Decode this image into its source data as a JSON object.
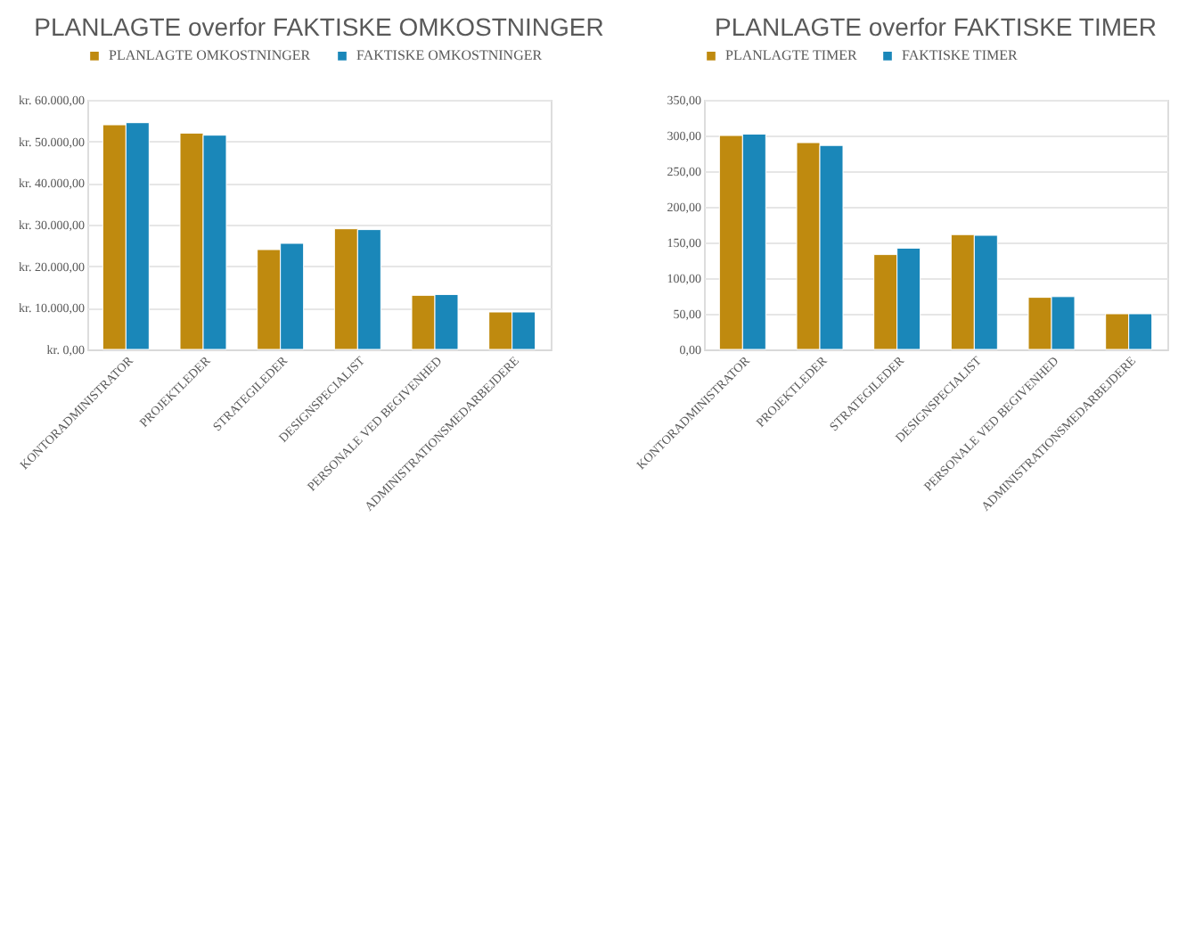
{
  "chart_data": [
    {
      "type": "bar",
      "title": "PLANLAGTE overfor FAKTISKE OMKOSTNINGER",
      "categories": [
        "KONTORADMINISTRATOR",
        "PROJEKTLEDER",
        "STRATEGILEDER",
        "DESIGNSPECIALIST",
        "PERSONALE VED BEGIVENHED",
        "ADMINISTRATIONSMEDARBEJDERE"
      ],
      "series": [
        {
          "name": "PLANLAGTE OMKOSTNINGER",
          "color": "#bf8a0f",
          "values": [
            54000,
            52000,
            24000,
            29000,
            13000,
            9000
          ]
        },
        {
          "name": "FAKTISKE OMKOSTNINGER",
          "color": "#1a87b9",
          "values": [
            54500,
            51500,
            25500,
            28800,
            13200,
            9000
          ]
        }
      ],
      "ylim": [
        0,
        60000
      ],
      "yticks": [
        {
          "value": 0,
          "label": "kr. 0,00"
        },
        {
          "value": 10000,
          "label": "kr. 10.000,00"
        },
        {
          "value": 20000,
          "label": "kr. 20.000,00"
        },
        {
          "value": 30000,
          "label": "kr. 30.000,00"
        },
        {
          "value": 40000,
          "label": "kr. 40.000,00"
        },
        {
          "value": 50000,
          "label": "kr. 50.000,00"
        },
        {
          "value": 60000,
          "label": "kr. 60.000,00"
        }
      ],
      "grid": "y",
      "legend": "top"
    },
    {
      "type": "bar",
      "title": "PLANLAGTE overfor FAKTISKE TIMER",
      "categories": [
        "KONTORADMINISTRATOR",
        "PROJEKTLEDER",
        "STRATEGILEDER",
        "DESIGNSPECIALIST",
        "PERSONALE VED BEGIVENHED",
        "ADMINISTRATIONSMEDARBEJDERE"
      ],
      "series": [
        {
          "name": "PLANLAGTE TIMER",
          "color": "#bf8a0f",
          "values": [
            300,
            290,
            133,
            161,
            73,
            50
          ]
        },
        {
          "name": "FAKTISKE TIMER",
          "color": "#1a87b9",
          "values": [
            302,
            286,
            142,
            160,
            74,
            50
          ]
        }
      ],
      "ylim": [
        0,
        350
      ],
      "yticks": [
        {
          "value": 0,
          "label": "0,00"
        },
        {
          "value": 50,
          "label": "50,00"
        },
        {
          "value": 100,
          "label": "100,00"
        },
        {
          "value": 150,
          "label": "150,00"
        },
        {
          "value": 200,
          "label": "200,00"
        },
        {
          "value": 250,
          "label": "250,00"
        },
        {
          "value": 300,
          "label": "300,00"
        },
        {
          "value": 350,
          "label": "350,00"
        }
      ],
      "grid": "y",
      "legend": "top"
    }
  ]
}
